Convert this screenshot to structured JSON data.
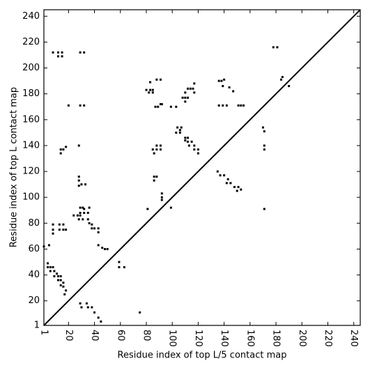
{
  "chart_data": {
    "type": "scatter",
    "xlabel": "Residue index of top L/5 contact map",
    "ylabel": "Residue index of top L contact map",
    "xlim": [
      1,
      245
    ],
    "ylim": [
      1,
      245
    ],
    "xticks": [
      1,
      20,
      40,
      60,
      80,
      100,
      120,
      140,
      160,
      180,
      200,
      220,
      240
    ],
    "yticks": [
      1,
      20,
      40,
      60,
      80,
      100,
      120,
      140,
      160,
      180,
      200,
      220,
      240
    ],
    "color": "#000000",
    "x": [
      8,
      12,
      12,
      15,
      15,
      29,
      32,
      20,
      29,
      32,
      28,
      14,
      16,
      18,
      14,
      28,
      28,
      30,
      33,
      28,
      24,
      27,
      29,
      29,
      31,
      32,
      36,
      29,
      32,
      35,
      28,
      31,
      35,
      36,
      38,
      38,
      40,
      43,
      43,
      8,
      8,
      13,
      16,
      13,
      16,
      18,
      8,
      1,
      5,
      43,
      46,
      48,
      50,
      4,
      4,
      6,
      8,
      6,
      9,
      11,
      9,
      12,
      14,
      12,
      14,
      16,
      14,
      16,
      18,
      17,
      29,
      34,
      30,
      35,
      38,
      40,
      43,
      45,
      59,
      59,
      63,
      75,
      81,
      82,
      80,
      83,
      85,
      85,
      83,
      88,
      91,
      85,
      88,
      91,
      88,
      91,
      86,
      86,
      88,
      86,
      92,
      92,
      92,
      87,
      89,
      91,
      92,
      99,
      99,
      103,
      103,
      104,
      106,
      106,
      107,
      108,
      110,
      112,
      110,
      110,
      112,
      114,
      116,
      117,
      117,
      112,
      110,
      112,
      115,
      113,
      117,
      117,
      120,
      120,
      110,
      136,
      138,
      140,
      139,
      136,
      139,
      142,
      144,
      147,
      151,
      153,
      155,
      135,
      137,
      140,
      143,
      142,
      145,
      148,
      151,
      150,
      153,
      178,
      181,
      184,
      185,
      190,
      170,
      171,
      171,
      171,
      171
    ],
    "values": [
      212,
      212,
      209,
      212,
      209,
      212,
      212,
      171,
      171,
      171,
      140,
      137,
      137,
      139,
      134,
      116,
      113,
      110,
      110,
      109,
      86,
      86,
      86,
      92,
      92,
      91,
      92,
      88,
      88,
      88,
      83,
      83,
      83,
      80,
      79,
      76,
      76,
      76,
      73,
      79,
      75,
      79,
      79,
      75,
      75,
      75,
      72,
      62,
      63,
      63,
      61,
      60,
      60,
      49,
      46,
      46,
      46,
      43,
      43,
      41,
      39,
      39,
      39,
      36,
      36,
      34,
      32,
      31,
      28,
      25,
      18,
      18,
      15,
      15,
      15,
      11,
      7,
      4,
      50,
      46,
      46,
      11,
      91,
      181,
      183,
      183,
      183,
      181,
      189,
      191,
      191,
      137,
      140,
      140,
      137,
      137,
      134,
      116,
      116,
      113,
      103,
      100,
      98,
      170,
      170,
      172,
      172,
      170,
      92,
      170,
      150,
      154,
      152,
      150,
      154,
      177,
      177,
      177,
      174,
      181,
      184,
      184,
      184,
      188,
      181,
      146,
      146,
      143,
      143,
      140,
      140,
      137,
      137,
      134,
      144,
      190,
      190,
      191,
      186,
      171,
      171,
      171,
      185,
      182,
      171,
      171,
      171,
      120,
      117,
      117,
      114,
      111,
      111,
      108,
      108,
      105,
      106,
      216,
      216,
      191,
      193,
      186,
      154,
      151,
      140,
      137,
      91
    ]
  }
}
